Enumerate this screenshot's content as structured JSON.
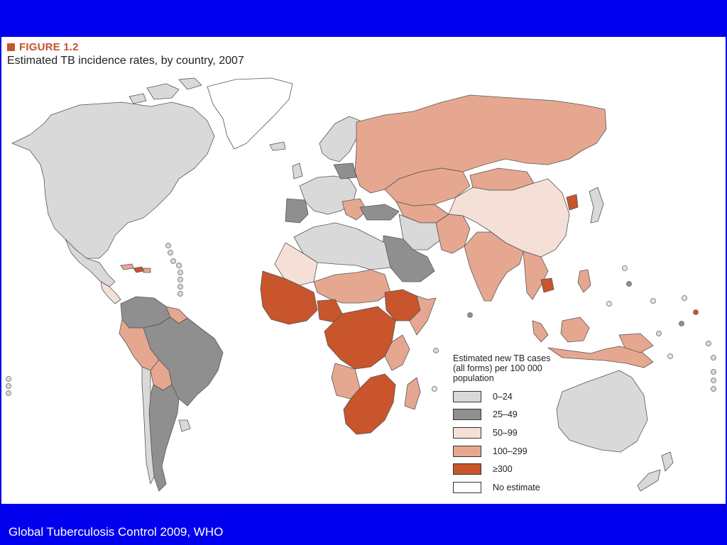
{
  "figure": {
    "label": "FIGURE 1.2",
    "title": "Estimated TB incidence rates, by country, 2007"
  },
  "legend": {
    "title": "Estimated new TB cases (all forms) per 100 000 population",
    "items": [
      {
        "label": "0–24",
        "color": "#d9d9d9"
      },
      {
        "label": "25–49",
        "color": "#8f8f8f"
      },
      {
        "label": "50–99",
        "color": "#f5e0d7"
      },
      {
        "label": "100–299",
        "color": "#e6a790"
      },
      {
        "label": "≥300",
        "color": "#c8552c"
      },
      {
        "label": "No estimate",
        "color": "#ffffff"
      }
    ]
  },
  "footer": {
    "source": "Global Tuberculosis Control 2009, WHO"
  },
  "colors": {
    "background": "#0000ee",
    "accent": "#c3542b",
    "land_outline": "#555555"
  }
}
